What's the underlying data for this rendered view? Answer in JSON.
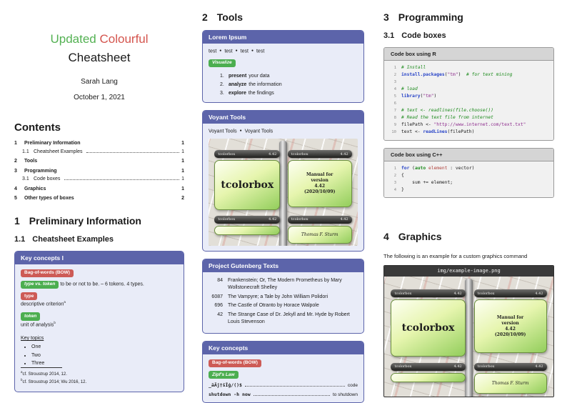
{
  "ui": {
    "bullet": "●"
  },
  "colors": {
    "accent_purple": "#5c64aa",
    "badge_red": "#cd5b56",
    "badge_green": "#4cae50",
    "title_green": "#53b152",
    "title_red": "#d4544d",
    "code_comment_green": "#1b8a1b",
    "code_keyword_blue": "#2743c7",
    "code_string_purple": "#8d2c8d"
  },
  "titleblock": {
    "title_word1": "Updated",
    "title_word2": "Colourful",
    "title_line2": "Cheatsheet",
    "author": "Sarah Lang",
    "date": "October 1, 2021"
  },
  "contents": {
    "heading": "Contents",
    "entries": [
      {
        "num": "1",
        "label": "Preliminary Information",
        "page": "1"
      },
      {
        "num": "1.1",
        "label": "Cheatsheet Examples",
        "page": "1"
      },
      {
        "num": "2",
        "label": "Tools",
        "page": "1"
      },
      {
        "num": "3",
        "label": "Programming",
        "page": "1"
      },
      {
        "num": "3.1",
        "label": "Code boxes",
        "page": "1"
      },
      {
        "num": "4",
        "label": "Graphics",
        "page": "1"
      },
      {
        "num": "5",
        "label": "Other types of boxes",
        "page": "2"
      }
    ]
  },
  "sections": {
    "s1": {
      "num": "1",
      "title": "Preliminary Information"
    },
    "s11": {
      "num": "1.1",
      "title": "Cheatsheet Examples"
    },
    "s2": {
      "num": "2",
      "title": "Tools"
    },
    "s3": {
      "num": "3",
      "title": "Programming"
    },
    "s31": {
      "num": "3.1",
      "title": "Code boxes"
    },
    "s4": {
      "num": "4",
      "title": "Graphics"
    }
  },
  "keyconcepts1": {
    "title": "Key concepts I",
    "badge_bow": "Bag-of-words (BOW)",
    "badge_type_token": "type vs. token",
    "type_token_text": "to be or not to be. – 6 tokens. 4 types.",
    "badge_type": "type",
    "type_text": "descriptive criterion",
    "type_fn": "a",
    "badge_token": "token",
    "token_text": "unit of analysis",
    "token_fn": "b",
    "key_topics": "Key topics",
    "topics": [
      "One",
      "Two",
      "Three"
    ],
    "fn_a_mark": "a",
    "fn_a": "cf. Stroustrup 2014, 12.",
    "fn_b_mark": "b",
    "fn_b": "cf. Stroustrup 2014; Wu 2016, 12."
  },
  "lorem": {
    "title": "Lorem Ipsum",
    "tests": [
      "test",
      "test",
      "test",
      "test"
    ],
    "badge": "Visualize",
    "steps": [
      {
        "n": "1.",
        "bold": "present",
        "rest": "your data"
      },
      {
        "n": "2.",
        "bold": "analyze",
        "rest": "the information"
      },
      {
        "n": "3.",
        "bold": "explore",
        "rest": "the findings"
      }
    ]
  },
  "voyant": {
    "title": "Voyant Tools",
    "link1": "Voyant Tools",
    "link2": "Voyant Tools"
  },
  "tcb": {
    "label_name": "tcolorbox",
    "label_version": "4.42",
    "main_text": "tcolorbox",
    "manual_l1": "Manual for",
    "manual_l2": "version",
    "manual_l3": "4.42",
    "manual_l4": "(2020/10/09)",
    "author": "Thomas F. Sturm"
  },
  "gutenberg": {
    "title": "Project Gutenberg Texts",
    "rows": [
      {
        "id": "84",
        "text": "Frankenstein; Or, The Modern Prometheus by Mary Wollstonecraft Shelley"
      },
      {
        "id": "6087",
        "text": "The Vampyre; a Tale by John William Polidori"
      },
      {
        "id": "696",
        "text": "The Castle of Otranto by Horace Walpole"
      },
      {
        "id": "42",
        "text": "The Strange Case of Dr. Jekyll and Mr. Hyde by Robert Louis Stevenson"
      }
    ]
  },
  "keyconcepts2": {
    "title": "Key concepts",
    "badge_bow": "Bag-of-words (BOW)",
    "badge_zipf": "Zipf's Law",
    "rows": [
      {
        "left": "_äÄj†šÎģ/()$",
        "right": "code"
      },
      {
        "left": "shutdown -h now",
        "right": "to shutdown"
      }
    ]
  },
  "rcode": {
    "title": "Code box using R",
    "lines": [
      [
        {
          "t": "# Install",
          "c": "com"
        }
      ],
      [
        {
          "t": "install.packages",
          "c": "kw"
        },
        {
          "t": "(",
          "c": ""
        },
        {
          "t": "\"tm\"",
          "c": "str"
        },
        {
          "t": ")",
          "c": ""
        },
        {
          "t": "  # for text mining",
          "c": "com"
        }
      ],
      [],
      [
        {
          "t": "# load",
          "c": "com"
        }
      ],
      [
        {
          "t": "library",
          "c": "kw"
        },
        {
          "t": "(",
          "c": ""
        },
        {
          "t": "\"tm\"",
          "c": "str"
        },
        {
          "t": ")",
          "c": ""
        }
      ],
      [],
      [
        {
          "t": "# text <- readlines(file.choose())",
          "c": "com"
        }
      ],
      [
        {
          "t": "# Read the text file from internet",
          "c": "com"
        }
      ],
      [
        {
          "t": "filePath <- ",
          "c": ""
        },
        {
          "t": "\"http://www.internet.com/text.txt\"",
          "c": "str"
        }
      ],
      [
        {
          "t": "text <- ",
          "c": ""
        },
        {
          "t": "readLines",
          "c": "kw"
        },
        {
          "t": "(filePath)",
          "c": ""
        }
      ]
    ]
  },
  "cppcode": {
    "title": "Code box using C++",
    "lines": [
      [
        {
          "t": "for",
          "c": "kw"
        },
        {
          "t": " (",
          "c": ""
        },
        {
          "t": "auto",
          "c": "typ"
        },
        {
          "t": " ",
          "c": ""
        },
        {
          "t": "element",
          "c": "var"
        },
        {
          "t": " : vector)",
          "c": ""
        }
      ],
      [
        {
          "t": "{",
          "c": ""
        }
      ],
      [
        {
          "t": "    sum += element;",
          "c": ""
        }
      ],
      [
        {
          "t": "}",
          "c": ""
        }
      ]
    ]
  },
  "graphics": {
    "caption": "The following is an example for a custom graphics command",
    "image_title": "img/example-image.png"
  }
}
